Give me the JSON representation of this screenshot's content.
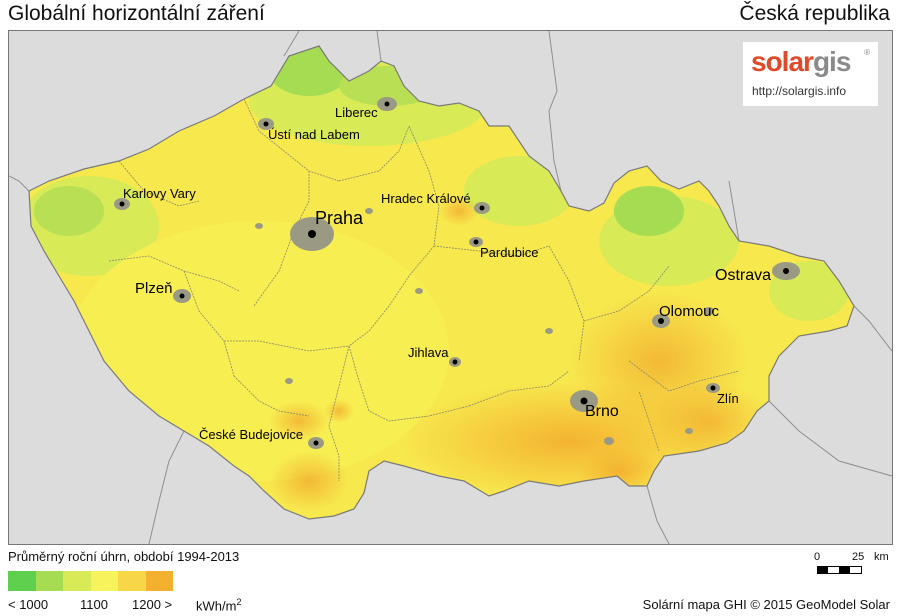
{
  "header": {
    "title": "Globální horizontální záření",
    "region": "Česká republika"
  },
  "logo": {
    "word_part1": "solar",
    "word_part2": "gis",
    "mark": "®",
    "url": "http://solargis.info"
  },
  "cities": [
    {
      "name": "Liberec",
      "size": "small"
    },
    {
      "name": "Ústí nad Labem",
      "size": "small"
    },
    {
      "name": "Karlovy Vary",
      "size": "small"
    },
    {
      "name": "Praha",
      "size": "large"
    },
    {
      "name": "Hradec Králové",
      "size": "small"
    },
    {
      "name": "Pardubice",
      "size": "small"
    },
    {
      "name": "Plzeň",
      "size": "medium"
    },
    {
      "name": "Ostrava",
      "size": "medium"
    },
    {
      "name": "Olomouc",
      "size": "medium"
    },
    {
      "name": "Jihlava",
      "size": "small"
    },
    {
      "name": "Brno",
      "size": "medium"
    },
    {
      "name": "Zlín",
      "size": "small"
    },
    {
      "name": "České Budejovice",
      "size": "small"
    }
  ],
  "legend": {
    "title": "Průměrný roční úhrn, období 1994-2013",
    "colors": [
      "#5fcf4e",
      "#a6dc52",
      "#d8ea55",
      "#f7f35c",
      "#f7d748",
      "#f4b12f"
    ],
    "ticks": [
      "< 1000",
      "1100",
      "1200 >"
    ],
    "unit": "kWh/m",
    "unit_sup": "2"
  },
  "scale_bar": {
    "zero": "0",
    "value": "25",
    "unit": "km"
  },
  "footer": {
    "credit": "Solární mapa GHI © 2015 GeoModel Solar"
  },
  "colors": {
    "background_outside": "#dcdcdc",
    "border_lines": "#8a8a6a",
    "urban": "#9a9a84"
  }
}
